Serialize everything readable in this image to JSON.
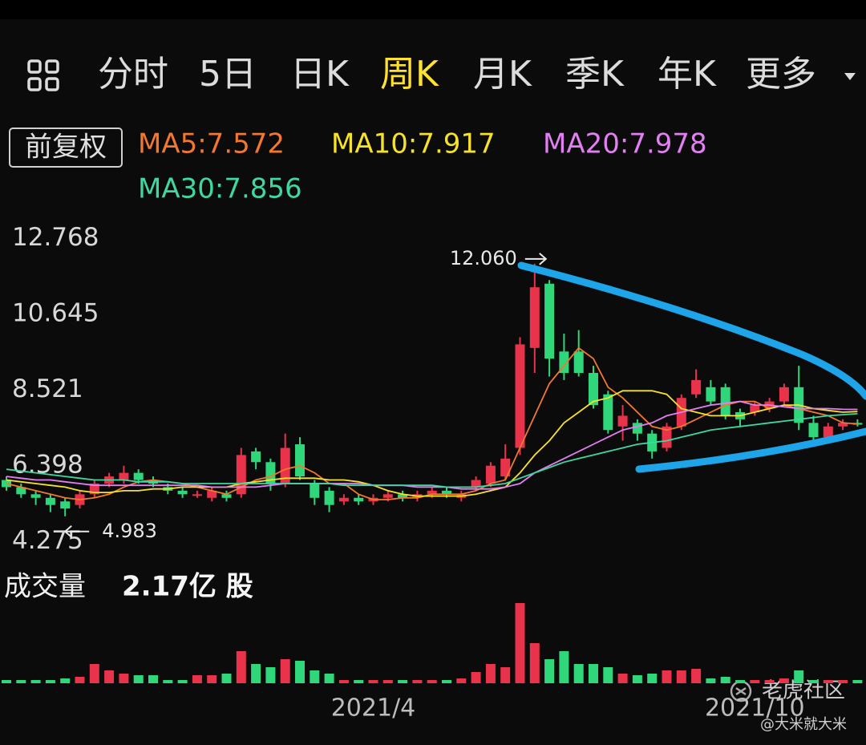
{
  "tabs": [
    "分时",
    "5日",
    "日K",
    "周K",
    "月K",
    "季K",
    "年K",
    "更多"
  ],
  "selected_tab": 3,
  "adjust_button": "前复权",
  "chart_data": {
    "type": "candlestick",
    "categories": [
      null,
      null,
      null,
      null,
      null,
      null,
      null,
      null,
      null,
      null,
      null,
      null,
      null,
      null,
      null,
      null,
      null,
      null,
      null,
      null,
      null,
      null,
      null,
      null,
      null,
      "2021/4",
      null,
      null,
      null,
      null,
      null,
      null,
      null,
      null,
      null,
      null,
      null,
      null,
      null,
      null,
      null,
      null,
      null,
      null,
      null,
      null,
      null,
      null,
      null,
      null,
      null,
      "2021/10",
      null,
      null,
      null,
      null,
      null,
      null,
      null
    ],
    "open": [
      6.0,
      5.8,
      5.6,
      5.5,
      5.4,
      5.3,
      5.6,
      5.9,
      6.0,
      6.2,
      6.0,
      5.8,
      5.7,
      5.6,
      5.5,
      5.6,
      5.6,
      6.8,
      6.5,
      5.9,
      7.0,
      5.9,
      5.7,
      5.4,
      5.5,
      5.4,
      5.5,
      5.6,
      5.5,
      5.6,
      5.7,
      5.5,
      5.8,
      5.9,
      6.1,
      6.9,
      9.7,
      11.5,
      9.6,
      9.6,
      9.0,
      8.4,
      7.5,
      7.6,
      7.3,
      6.9,
      7.5,
      8.4,
      8.6,
      8.6,
      7.9,
      7.9,
      8.0,
      8.2,
      8.6,
      7.6,
      7.2,
      7.5,
      7.6
    ],
    "high": [
      6.1,
      5.9,
      5.7,
      5.6,
      5.5,
      5.7,
      6.0,
      6.2,
      6.4,
      6.3,
      6.1,
      5.9,
      5.8,
      5.7,
      5.8,
      5.7,
      6.9,
      6.9,
      6.6,
      7.3,
      7.2,
      6.0,
      5.8,
      5.6,
      5.6,
      5.6,
      5.7,
      5.7,
      5.7,
      5.8,
      5.8,
      5.7,
      6.1,
      6.5,
      7.0,
      10.0,
      12.06,
      11.6,
      10.1,
      10.2,
      9.2,
      8.5,
      8.1,
      7.7,
      7.4,
      7.6,
      8.4,
      9.1,
      8.8,
      8.7,
      8.0,
      8.2,
      8.3,
      8.7,
      9.2,
      7.8,
      7.6,
      7.7,
      7.7
    ],
    "low": [
      5.7,
      5.5,
      5.3,
      5.1,
      4.983,
      5.2,
      5.5,
      5.8,
      5.9,
      5.9,
      5.8,
      5.6,
      5.5,
      5.5,
      5.4,
      5.4,
      5.5,
      6.3,
      5.7,
      5.8,
      6.0,
      5.3,
      5.1,
      5.3,
      5.3,
      5.3,
      5.4,
      5.4,
      5.4,
      5.5,
      5.5,
      5.4,
      5.7,
      5.8,
      6.0,
      6.7,
      9.0,
      8.9,
      8.8,
      8.9,
      8.0,
      7.3,
      7.1,
      7.1,
      6.6,
      6.8,
      7.4,
      8.3,
      8.1,
      7.7,
      7.5,
      7.8,
      7.9,
      8.1,
      7.4,
      7.1,
      7.1,
      7.4,
      7.5
    ],
    "close": [
      5.8,
      5.6,
      5.5,
      5.3,
      5.2,
      5.6,
      5.9,
      6.1,
      6.2,
      6.0,
      5.9,
      5.7,
      5.6,
      5.6,
      5.7,
      5.5,
      6.7,
      6.5,
      5.9,
      6.9,
      6.1,
      5.5,
      5.3,
      5.5,
      5.4,
      5.5,
      5.6,
      5.5,
      5.6,
      5.7,
      5.6,
      5.6,
      6.0,
      6.4,
      6.6,
      9.8,
      11.4,
      9.4,
      9.0,
      9.0,
      8.1,
      7.4,
      7.8,
      7.3,
      6.8,
      7.5,
      8.3,
      8.8,
      8.2,
      7.8,
      7.7,
      8.1,
      8.2,
      8.6,
      7.6,
      7.2,
      7.5,
      7.6,
      7.55
    ],
    "up_color": "#e8334a",
    "down_color": "#2fd67a",
    "ylim": [
      3.9,
      13.0
    ],
    "yticks": [
      12.768,
      10.645,
      8.521,
      6.398,
      4.275
    ],
    "ma_series": [
      {
        "name": "MA5:7.572",
        "color": "#f2782e",
        "values": [
          5.9,
          5.8,
          5.7,
          5.6,
          5.5,
          5.45,
          5.5,
          5.6,
          5.8,
          5.95,
          6.0,
          5.95,
          5.9,
          5.8,
          5.7,
          5.6,
          5.8,
          6.0,
          6.1,
          6.3,
          6.4,
          6.2,
          5.9,
          5.9,
          5.6,
          5.45,
          5.45,
          5.5,
          5.5,
          5.6,
          5.6,
          5.6,
          5.7,
          5.9,
          6.0,
          6.9,
          7.8,
          8.7,
          9.2,
          9.7,
          9.4,
          8.6,
          8.3,
          7.9,
          7.5,
          7.4,
          7.5,
          7.7,
          7.9,
          8.1,
          8.2,
          8.2,
          8.0,
          8.1,
          8.0,
          7.9,
          7.8,
          7.6,
          7.572
        ]
      },
      {
        "name": "MA10:7.917",
        "color": "#f7e22b",
        "values": [
          6.0,
          5.95,
          5.9,
          5.85,
          5.8,
          5.7,
          5.65,
          5.65,
          5.7,
          5.7,
          5.75,
          5.75,
          5.8,
          5.8,
          5.8,
          5.8,
          5.9,
          5.95,
          6.0,
          6.05,
          6.05,
          6.05,
          6.0,
          6.0,
          5.95,
          5.85,
          5.7,
          5.6,
          5.55,
          5.55,
          5.55,
          5.55,
          5.6,
          5.7,
          5.8,
          6.2,
          6.7,
          7.1,
          7.6,
          7.9,
          8.2,
          8.3,
          8.5,
          8.5,
          8.5,
          8.4,
          8.0,
          7.9,
          7.8,
          7.8,
          7.8,
          7.9,
          8.0,
          8.1,
          8.1,
          8.0,
          7.95,
          7.9,
          7.917
        ]
      },
      {
        "name": "MA20:7.978",
        "color": "#e27ff2",
        "values": [
          6.1,
          6.05,
          6.0,
          6.0,
          5.95,
          5.9,
          5.85,
          5.85,
          5.85,
          5.85,
          5.85,
          5.85,
          5.85,
          5.85,
          5.8,
          5.8,
          5.8,
          5.8,
          5.85,
          5.9,
          5.9,
          5.9,
          5.9,
          5.9,
          5.9,
          5.85,
          5.85,
          5.85,
          5.8,
          5.8,
          5.8,
          5.75,
          5.75,
          5.75,
          5.8,
          5.9,
          6.2,
          6.4,
          6.6,
          6.8,
          7.0,
          7.2,
          7.4,
          7.5,
          7.6,
          7.8,
          7.9,
          8.0,
          8.1,
          8.15,
          8.2,
          8.1,
          8.1,
          8.05,
          8.0,
          8.0,
          8.0,
          7.98,
          7.978
        ]
      },
      {
        "name": "MA30:7.856",
        "color": "#3ed8a0",
        "values": [
          6.3,
          6.25,
          6.2,
          6.15,
          6.1,
          6.05,
          6.0,
          6.0,
          6.0,
          5.95,
          5.95,
          5.95,
          5.9,
          5.9,
          5.9,
          5.9,
          5.9,
          5.9,
          5.9,
          5.9,
          5.9,
          5.9,
          5.9,
          5.85,
          5.85,
          5.85,
          5.85,
          5.85,
          5.85,
          5.85,
          5.8,
          5.8,
          5.8,
          5.85,
          5.9,
          6.05,
          6.2,
          6.35,
          6.5,
          6.6,
          6.7,
          6.8,
          6.9,
          7.0,
          7.05,
          7.1,
          7.2,
          7.3,
          7.4,
          7.45,
          7.5,
          7.55,
          7.6,
          7.65,
          7.7,
          7.75,
          7.8,
          7.83,
          7.856
        ]
      }
    ],
    "high_label": {
      "value": 12.06,
      "label": "12.060"
    },
    "low_label": 4.983,
    "volume": {
      "title": "成交量",
      "current": "2.17亿 股",
      "values": [
        0.1,
        0.1,
        0.1,
        0.1,
        0.15,
        0.2,
        0.6,
        0.4,
        0.3,
        0.25,
        0.25,
        0.1,
        0.1,
        0.25,
        0.25,
        0.3,
        1.0,
        0.6,
        0.5,
        0.75,
        0.7,
        0.4,
        0.3,
        0.1,
        0.1,
        0.1,
        0.1,
        0.1,
        0.1,
        0.1,
        0.1,
        0.15,
        0.35,
        0.6,
        0.5,
        2.5,
        1.25,
        0.75,
        1.0,
        0.6,
        0.6,
        0.5,
        0.3,
        0.25,
        0.3,
        0.4,
        0.4,
        0.45,
        0.15,
        0.2,
        0.1,
        0.1,
        0.1,
        0.15,
        0.4,
        0.1,
        0.1,
        0.1,
        0.1
      ]
    }
  },
  "watermark": {
    "brand": "老虎社区",
    "author": "@大米就大米"
  }
}
